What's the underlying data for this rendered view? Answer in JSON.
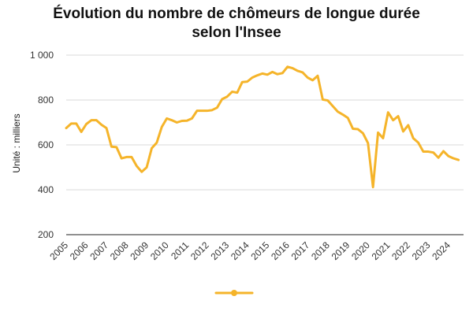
{
  "chart_data": {
    "type": "line",
    "title_line1": "Évolution du nombre de chômeurs de longue durée",
    "title_line2": "selon l'Insee",
    "ylabel": "Unité : milliers",
    "xlabel": "",
    "ylim": [
      200,
      1000
    ],
    "yticks": [
      "200",
      "400",
      "600",
      "800",
      "1 000"
    ],
    "ytick_values": [
      200,
      400,
      600,
      800,
      1000
    ],
    "xlim": [
      2005,
      2024.75
    ],
    "xticks": [
      "2005",
      "2006",
      "2007",
      "2008",
      "2009",
      "2010",
      "2011",
      "2012",
      "2013",
      "2014",
      "2015",
      "2016",
      "2017",
      "2018",
      "2019",
      "2020",
      "2021",
      "2022",
      "2023",
      "2024"
    ],
    "grid": "horizontal",
    "legend": "bottom",
    "colors": {
      "line": "#f5b42a",
      "grid": "#d9d9d9",
      "axis": "#222222"
    },
    "series": [
      {
        "values": [
          [
            2005.0,
            675
          ],
          [
            2005.25,
            695
          ],
          [
            2005.5,
            695
          ],
          [
            2005.75,
            658
          ],
          [
            2006.0,
            693
          ],
          [
            2006.25,
            710
          ],
          [
            2006.5,
            710
          ],
          [
            2006.75,
            690
          ],
          [
            2007.0,
            675
          ],
          [
            2007.25,
            592
          ],
          [
            2007.5,
            590
          ],
          [
            2007.75,
            540
          ],
          [
            2008.0,
            546
          ],
          [
            2008.25,
            546
          ],
          [
            2008.5,
            506
          ],
          [
            2008.75,
            480
          ],
          [
            2009.0,
            500
          ],
          [
            2009.25,
            585
          ],
          [
            2009.5,
            610
          ],
          [
            2009.75,
            680
          ],
          [
            2010.0,
            718
          ],
          [
            2010.25,
            710
          ],
          [
            2010.5,
            700
          ],
          [
            2010.75,
            707
          ],
          [
            2011.0,
            708
          ],
          [
            2011.25,
            718
          ],
          [
            2011.5,
            752
          ],
          [
            2011.75,
            752
          ],
          [
            2012.0,
            752
          ],
          [
            2012.25,
            755
          ],
          [
            2012.5,
            766
          ],
          [
            2012.75,
            804
          ],
          [
            2013.0,
            815
          ],
          [
            2013.25,
            837
          ],
          [
            2013.5,
            833
          ],
          [
            2013.75,
            880
          ],
          [
            2014.0,
            882
          ],
          [
            2014.25,
            900
          ],
          [
            2014.5,
            910
          ],
          [
            2014.75,
            918
          ],
          [
            2015.0,
            913
          ],
          [
            2015.25,
            925
          ],
          [
            2015.5,
            915
          ],
          [
            2015.75,
            920
          ],
          [
            2016.0,
            948
          ],
          [
            2016.25,
            942
          ],
          [
            2016.5,
            930
          ],
          [
            2016.75,
            923
          ],
          [
            2017.0,
            900
          ],
          [
            2017.25,
            888
          ],
          [
            2017.5,
            908
          ],
          [
            2017.75,
            802
          ],
          [
            2018.0,
            798
          ],
          [
            2018.25,
            773
          ],
          [
            2018.5,
            748
          ],
          [
            2018.75,
            735
          ],
          [
            2019.0,
            720
          ],
          [
            2019.25,
            672
          ],
          [
            2019.5,
            670
          ],
          [
            2019.75,
            652
          ],
          [
            2020.0,
            608
          ],
          [
            2020.25,
            412
          ],
          [
            2020.5,
            655
          ],
          [
            2020.75,
            630
          ],
          [
            2021.0,
            745
          ],
          [
            2021.25,
            710
          ],
          [
            2021.5,
            728
          ],
          [
            2021.75,
            660
          ],
          [
            2022.0,
            688
          ],
          [
            2022.25,
            630
          ],
          [
            2022.5,
            610
          ],
          [
            2022.75,
            570
          ],
          [
            2023.0,
            570
          ],
          [
            2023.25,
            566
          ],
          [
            2023.5,
            543
          ],
          [
            2023.75,
            572
          ],
          [
            2024.0,
            550
          ],
          [
            2024.25,
            540
          ],
          [
            2024.5,
            533
          ]
        ]
      }
    ]
  }
}
